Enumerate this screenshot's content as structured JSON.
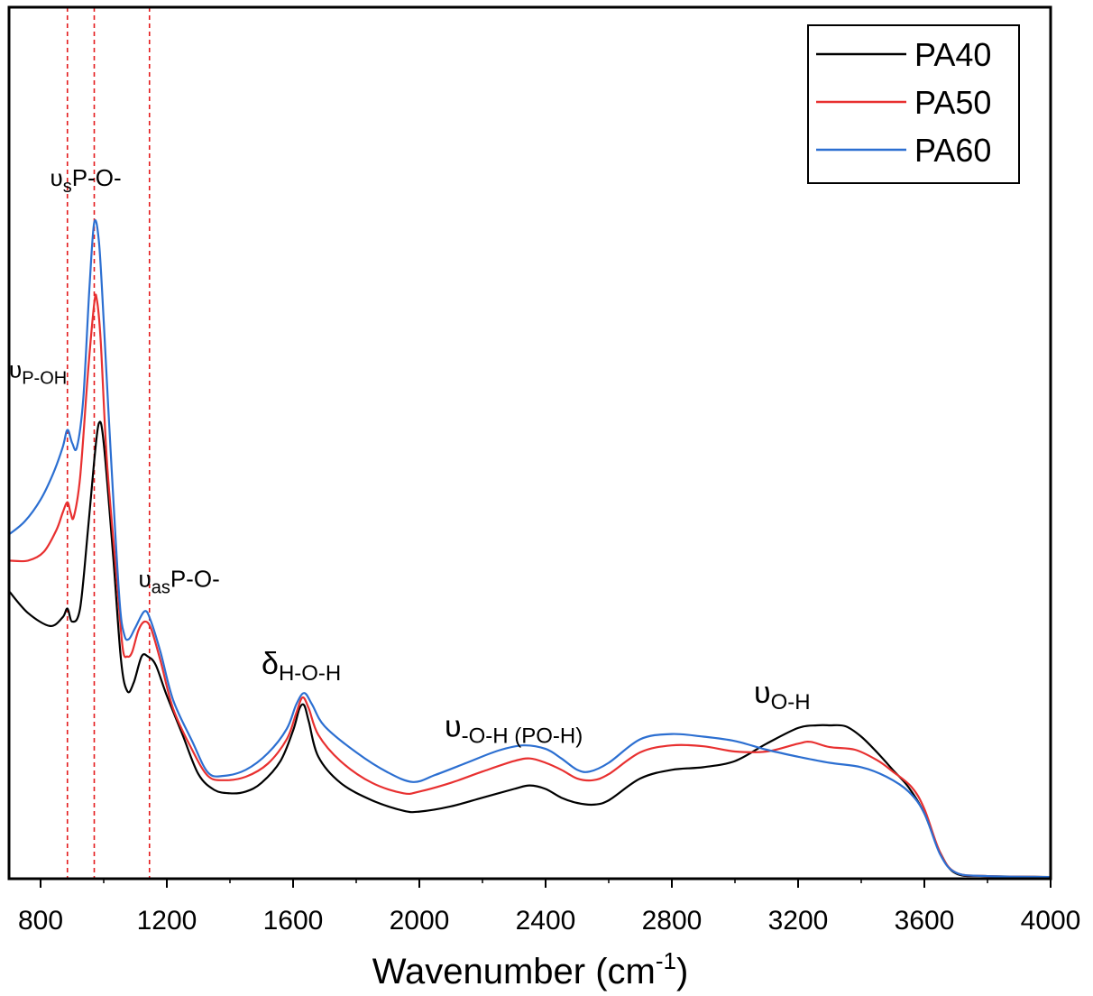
{
  "chart_data": {
    "type": "line",
    "xlabel": "Wavenumber (cm-1)",
    "xlabel_parts": {
      "main": "Wavenumber (cm",
      "sup": "-1",
      "close": ")"
    },
    "ylabel": "",
    "xlim": [
      700,
      4000
    ],
    "ylim": [
      0,
      100
    ],
    "x_ticks": [
      800,
      1200,
      1600,
      2000,
      2400,
      2800,
      3200,
      3600,
      4000
    ],
    "x_tick_labels": [
      "800",
      "1200",
      "1600",
      "2000",
      "2400",
      "2800",
      "3200",
      "3600",
      "4000"
    ],
    "y_ticks_shown": false,
    "grid": false,
    "legend": {
      "position": "top-right",
      "entries": [
        "PA40",
        "PA50",
        "PA60"
      ]
    },
    "reference_lines": [
      885,
      970,
      1145
    ],
    "series": [
      {
        "name": "PA40",
        "color": "#000000",
        "points": [
          [
            700,
            33
          ],
          [
            760,
            30.5
          ],
          [
            830,
            29
          ],
          [
            870,
            30
          ],
          [
            885,
            31
          ],
          [
            900,
            29.5
          ],
          [
            925,
            31
          ],
          [
            950,
            40
          ],
          [
            970,
            48
          ],
          [
            985,
            52.3
          ],
          [
            1000,
            50
          ],
          [
            1030,
            37
          ],
          [
            1055,
            25
          ],
          [
            1075,
            21.5
          ],
          [
            1095,
            22.5
          ],
          [
            1120,
            25.5
          ],
          [
            1140,
            25.5
          ],
          [
            1165,
            24.5
          ],
          [
            1200,
            21
          ],
          [
            1250,
            16.5
          ],
          [
            1300,
            12
          ],
          [
            1350,
            10.2
          ],
          [
            1400,
            9.8
          ],
          [
            1450,
            10
          ],
          [
            1500,
            11
          ],
          [
            1560,
            13.5
          ],
          [
            1600,
            17
          ],
          [
            1620,
            19.5
          ],
          [
            1635,
            19.9
          ],
          [
            1650,
            18
          ],
          [
            1680,
            14
          ],
          [
            1750,
            11
          ],
          [
            1850,
            9
          ],
          [
            1950,
            7.8
          ],
          [
            2000,
            7.7
          ],
          [
            2100,
            8.3
          ],
          [
            2200,
            9.3
          ],
          [
            2300,
            10.3
          ],
          [
            2350,
            10.7
          ],
          [
            2400,
            10.3
          ],
          [
            2450,
            9.3
          ],
          [
            2500,
            8.7
          ],
          [
            2550,
            8.5
          ],
          [
            2600,
            9
          ],
          [
            2700,
            11.5
          ],
          [
            2800,
            12.5
          ],
          [
            2900,
            12.8
          ],
          [
            3000,
            13.5
          ],
          [
            3100,
            15.5
          ],
          [
            3200,
            17.3
          ],
          [
            3260,
            17.6
          ],
          [
            3300,
            17.6
          ],
          [
            3350,
            17.5
          ],
          [
            3400,
            16.3
          ],
          [
            3450,
            14.5
          ],
          [
            3500,
            12.5
          ],
          [
            3550,
            10.5
          ],
          [
            3600,
            7.5
          ],
          [
            3650,
            3
          ],
          [
            3700,
            0.6
          ],
          [
            3800,
            0.3
          ],
          [
            4000,
            0.2
          ]
        ]
      },
      {
        "name": "PA50",
        "color": "#e83030",
        "points": [
          [
            700,
            36.5
          ],
          [
            760,
            36.5
          ],
          [
            810,
            37.5
          ],
          [
            850,
            40
          ],
          [
            870,
            42
          ],
          [
            885,
            43.2
          ],
          [
            895,
            42
          ],
          [
            905,
            41.5
          ],
          [
            925,
            46
          ],
          [
            950,
            58
          ],
          [
            970,
            66
          ],
          [
            978,
            66.5
          ],
          [
            990,
            62
          ],
          [
            1010,
            48
          ],
          [
            1040,
            35
          ],
          [
            1060,
            26.5
          ],
          [
            1075,
            25.5
          ],
          [
            1090,
            26
          ],
          [
            1110,
            28.5
          ],
          [
            1130,
            29.5
          ],
          [
            1150,
            28.7
          ],
          [
            1180,
            25
          ],
          [
            1220,
            19.5
          ],
          [
            1280,
            14.8
          ],
          [
            1330,
            11.8
          ],
          [
            1380,
            11.3
          ],
          [
            1450,
            11.7
          ],
          [
            1520,
            13.2
          ],
          [
            1580,
            16
          ],
          [
            1610,
            19
          ],
          [
            1630,
            20.8
          ],
          [
            1650,
            19.5
          ],
          [
            1680,
            16.5
          ],
          [
            1750,
            13.5
          ],
          [
            1850,
            11
          ],
          [
            1950,
            9.8
          ],
          [
            2000,
            10
          ],
          [
            2100,
            11
          ],
          [
            2200,
            12.3
          ],
          [
            2300,
            13.5
          ],
          [
            2350,
            13.8
          ],
          [
            2400,
            13.3
          ],
          [
            2450,
            12.5
          ],
          [
            2500,
            11.5
          ],
          [
            2550,
            11.3
          ],
          [
            2600,
            12
          ],
          [
            2700,
            14.5
          ],
          [
            2800,
            15.3
          ],
          [
            2900,
            15.2
          ],
          [
            3000,
            14.6
          ],
          [
            3100,
            14.6
          ],
          [
            3200,
            15.5
          ],
          [
            3240,
            15.7
          ],
          [
            3300,
            15.1
          ],
          [
            3380,
            14.8
          ],
          [
            3450,
            13.6
          ],
          [
            3500,
            12.3
          ],
          [
            3560,
            10.5
          ],
          [
            3600,
            8
          ],
          [
            3650,
            3
          ],
          [
            3700,
            0.7
          ],
          [
            3800,
            0.3
          ],
          [
            4000,
            0.2
          ]
        ]
      },
      {
        "name": "PA60",
        "color": "#2c6fd1",
        "points": [
          [
            700,
            39.5
          ],
          [
            750,
            41
          ],
          [
            800,
            43.5
          ],
          [
            840,
            46.5
          ],
          [
            870,
            49.5
          ],
          [
            885,
            51.5
          ],
          [
            900,
            50
          ],
          [
            915,
            49.5
          ],
          [
            935,
            55
          ],
          [
            955,
            68
          ],
          [
            970,
            75.3
          ],
          [
            985,
            73
          ],
          [
            1000,
            64
          ],
          [
            1025,
            47
          ],
          [
            1050,
            32
          ],
          [
            1065,
            28
          ],
          [
            1080,
            27.5
          ],
          [
            1100,
            28.8
          ],
          [
            1130,
            30.7
          ],
          [
            1150,
            29.5
          ],
          [
            1180,
            26
          ],
          [
            1220,
            20.5
          ],
          [
            1280,
            15.8
          ],
          [
            1330,
            12.2
          ],
          [
            1380,
            11.8
          ],
          [
            1450,
            12.5
          ],
          [
            1520,
            14.4
          ],
          [
            1580,
            17.2
          ],
          [
            1610,
            20
          ],
          [
            1635,
            21.3
          ],
          [
            1660,
            20
          ],
          [
            1700,
            17.5
          ],
          [
            1800,
            14.5
          ],
          [
            1900,
            12.2
          ],
          [
            1980,
            11.1
          ],
          [
            2050,
            11.9
          ],
          [
            2150,
            13.3
          ],
          [
            2250,
            14.7
          ],
          [
            2330,
            15.3
          ],
          [
            2400,
            14.9
          ],
          [
            2450,
            13.8
          ],
          [
            2500,
            12.5
          ],
          [
            2540,
            12.3
          ],
          [
            2600,
            13.3
          ],
          [
            2700,
            16
          ],
          [
            2800,
            16.6
          ],
          [
            2900,
            16.3
          ],
          [
            3000,
            15.8
          ],
          [
            3100,
            14.8
          ],
          [
            3200,
            14
          ],
          [
            3300,
            13.3
          ],
          [
            3400,
            12.8
          ],
          [
            3480,
            11.7
          ],
          [
            3550,
            10
          ],
          [
            3600,
            7.5
          ],
          [
            3650,
            2.8
          ],
          [
            3700,
            0.7
          ],
          [
            3800,
            0.3
          ],
          [
            4000,
            0.2
          ]
        ]
      }
    ],
    "annotations": [
      {
        "id": "p-oh",
        "sym": "υ",
        "sub": "P-OH",
        "tail": "",
        "x": 700,
        "y": 57.5,
        "style": "main"
      },
      {
        "id": "s-po",
        "sym": "υ",
        "sub": "s",
        "tail": "P-O-",
        "x": 830,
        "y": 79.5,
        "style": "main"
      },
      {
        "id": "as-po",
        "sym": "υ",
        "sub": "as",
        "tail": "P-O-",
        "x": 1110,
        "y": 33.5,
        "style": "main"
      },
      {
        "id": "hoh",
        "sym": "δ",
        "sub": "H-O-H",
        "tail": "",
        "x": 1500,
        "y": 23.5,
        "style": "big"
      },
      {
        "id": "po-h",
        "sym": "υ",
        "sub": "-O-H",
        "tail": " (PO-H)",
        "x": 2080,
        "y": 16.3,
        "style": "big"
      },
      {
        "id": "o-h",
        "sym": "υ",
        "sub": "O-H",
        "tail": "",
        "x": 3060,
        "y": 20.2,
        "style": "big"
      }
    ]
  }
}
